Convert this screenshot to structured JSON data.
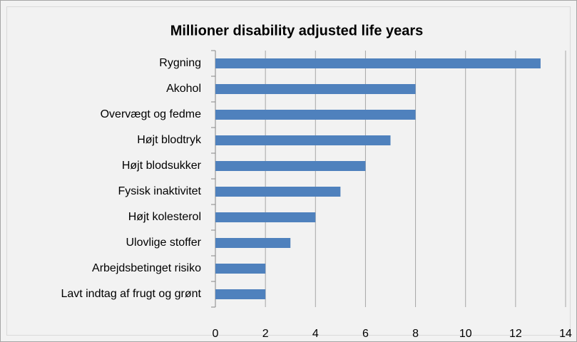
{
  "chart_data": {
    "type": "bar",
    "orientation": "horizontal",
    "title": "Millioner disability adjusted life years",
    "categories": [
      "Rygning",
      "Akohol",
      "Overvægt og fedme",
      "Højt blodtryk",
      "Højt blodsukker",
      "Fysisk inaktivitet",
      "Højt kolesterol",
      "Ulovlige stoffer",
      "Arbejdsbetinget risiko",
      "Lavt indtag af frugt og grønt"
    ],
    "values": [
      13,
      8,
      8,
      7,
      6,
      5,
      4,
      3,
      2,
      2
    ],
    "color": "#4f81bd",
    "xlim": [
      0,
      14
    ],
    "xticks": [
      0,
      2,
      4,
      6,
      8,
      10,
      12,
      14
    ],
    "grid": true
  }
}
